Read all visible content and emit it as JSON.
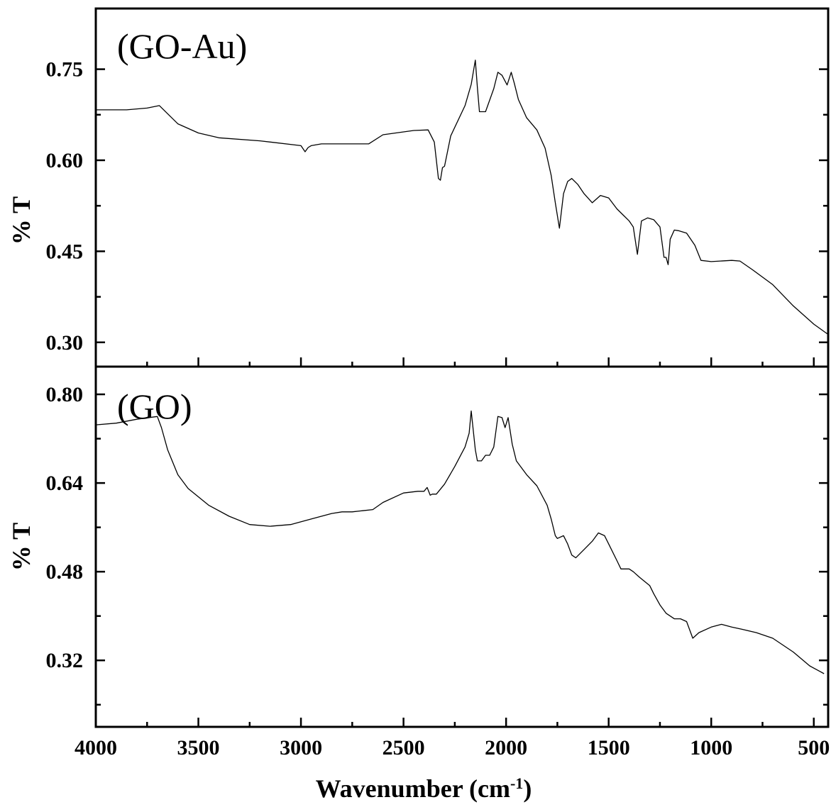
{
  "chart_data": {
    "type": "line",
    "x_axis": {
      "label_main": "Wavenumber (cm",
      "label_sup": "-1",
      "label_close": ")",
      "range": [
        4000,
        430
      ],
      "reversed": true,
      "major_ticks": [
        4000,
        3500,
        3000,
        2500,
        2000,
        1500,
        1000,
        500
      ],
      "tick_labels": [
        "4000",
        "3500",
        "3000",
        "2500",
        "2000",
        "1500",
        "1000",
        "500"
      ],
      "minor_ticks": [
        3750,
        3250,
        2750,
        2250,
        1750,
        1250,
        750
      ]
    },
    "panels": [
      {
        "label": "(GO-Au)",
        "ylabel": "% T",
        "ylim": [
          0.26,
          0.85
        ],
        "yticks": [
          0.3,
          0.45,
          0.6,
          0.75
        ],
        "ytick_labels": [
          "0.30",
          "0.45",
          "0.60",
          "0.75"
        ],
        "minor_yticks": [
          0.375,
          0.525,
          0.675
        ],
        "series": {
          "x": [
            4000,
            3850,
            3750,
            3690,
            3600,
            3500,
            3400,
            3200,
            3000,
            2980,
            2965,
            2950,
            2900,
            2700,
            2670,
            2600,
            2450,
            2380,
            2350,
            2330,
            2320,
            2310,
            2300,
            2270,
            2200,
            2170,
            2150,
            2140,
            2130,
            2100,
            2060,
            2040,
            2020,
            1995,
            1975,
            1960,
            1940,
            1900,
            1850,
            1810,
            1780,
            1760,
            1740,
            1720,
            1700,
            1680,
            1650,
            1620,
            1580,
            1540,
            1500,
            1460,
            1430,
            1400,
            1380,
            1360,
            1340,
            1310,
            1280,
            1250,
            1230,
            1220,
            1210,
            1200,
            1180,
            1160,
            1120,
            1080,
            1050,
            1000,
            900,
            860,
            800,
            700,
            600,
            500,
            430
          ],
          "y": [
            0.683,
            0.683,
            0.686,
            0.69,
            0.66,
            0.645,
            0.637,
            0.632,
            0.624,
            0.614,
            0.621,
            0.624,
            0.627,
            0.627,
            0.627,
            0.642,
            0.649,
            0.65,
            0.63,
            0.57,
            0.567,
            0.588,
            0.59,
            0.64,
            0.69,
            0.725,
            0.765,
            0.72,
            0.68,
            0.68,
            0.718,
            0.745,
            0.74,
            0.724,
            0.745,
            0.727,
            0.7,
            0.67,
            0.65,
            0.62,
            0.575,
            0.53,
            0.488,
            0.545,
            0.565,
            0.57,
            0.56,
            0.545,
            0.53,
            0.542,
            0.538,
            0.52,
            0.51,
            0.5,
            0.49,
            0.445,
            0.5,
            0.505,
            0.502,
            0.49,
            0.44,
            0.44,
            0.428,
            0.47,
            0.485,
            0.484,
            0.48,
            0.46,
            0.435,
            0.433,
            0.435,
            0.434,
            0.42,
            0.395,
            0.36,
            0.33,
            0.313
          ]
        }
      },
      {
        "label": "(GO)",
        "ylabel": "% T",
        "ylim": [
          0.2,
          0.85
        ],
        "yticks": [
          0.32,
          0.48,
          0.64,
          0.8
        ],
        "ytick_labels": [
          "0.32",
          "0.48",
          "0.64",
          "0.80"
        ],
        "minor_yticks": [
          0.24,
          0.4,
          0.56,
          0.72
        ],
        "series": {
          "x": [
            4000,
            3900,
            3800,
            3700,
            3680,
            3650,
            3600,
            3550,
            3450,
            3350,
            3250,
            3150,
            3050,
            2950,
            2850,
            2800,
            2750,
            2700,
            2650,
            2600,
            2500,
            2430,
            2400,
            2385,
            2370,
            2360,
            2340,
            2300,
            2250,
            2200,
            2180,
            2170,
            2160,
            2150,
            2140,
            2120,
            2100,
            2080,
            2060,
            2040,
            2020,
            2005,
            1990,
            1970,
            1950,
            1900,
            1850,
            1800,
            1780,
            1760,
            1750,
            1720,
            1700,
            1680,
            1660,
            1620,
            1580,
            1550,
            1520,
            1500,
            1460,
            1440,
            1400,
            1380,
            1350,
            1300,
            1280,
            1250,
            1220,
            1180,
            1150,
            1120,
            1100,
            1090,
            1060,
            1000,
            950,
            900,
            850,
            780,
            700,
            600,
            520,
            470,
            450
          ],
          "y": [
            0.745,
            0.748,
            0.755,
            0.76,
            0.74,
            0.7,
            0.655,
            0.63,
            0.6,
            0.58,
            0.565,
            0.562,
            0.565,
            0.575,
            0.585,
            0.588,
            0.588,
            0.59,
            0.592,
            0.605,
            0.622,
            0.625,
            0.625,
            0.632,
            0.618,
            0.62,
            0.62,
            0.638,
            0.67,
            0.705,
            0.73,
            0.77,
            0.735,
            0.7,
            0.68,
            0.68,
            0.69,
            0.69,
            0.705,
            0.76,
            0.758,
            0.74,
            0.758,
            0.71,
            0.68,
            0.655,
            0.635,
            0.6,
            0.575,
            0.545,
            0.54,
            0.545,
            0.53,
            0.51,
            0.505,
            0.52,
            0.535,
            0.55,
            0.545,
            0.53,
            0.5,
            0.485,
            0.485,
            0.48,
            0.47,
            0.455,
            0.44,
            0.42,
            0.405,
            0.395,
            0.395,
            0.39,
            0.37,
            0.36,
            0.37,
            0.38,
            0.385,
            0.38,
            0.376,
            0.37,
            0.36,
            0.335,
            0.31,
            0.3,
            0.296
          ]
        }
      }
    ]
  }
}
